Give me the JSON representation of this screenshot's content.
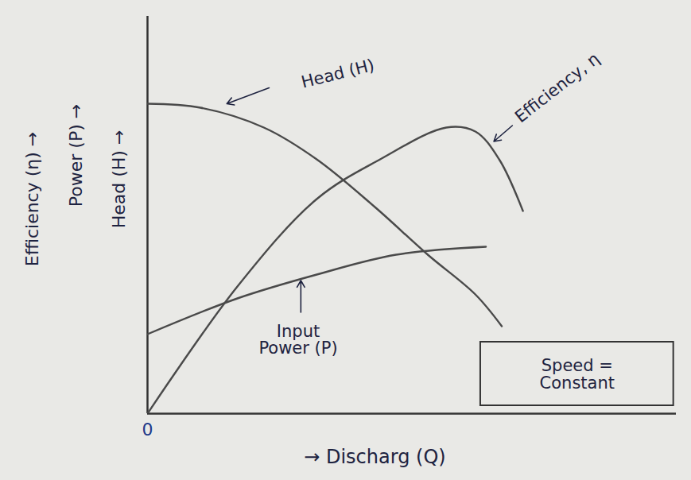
{
  "chart_data": {
    "type": "line",
    "x_label": "→ Discharg (Q)",
    "y_label": [
      "Efficiency (η) →",
      "Power (P) →",
      "Head (H) →"
    ],
    "xlim": [
      0,
      10
    ],
    "ylim": [
      0,
      10
    ],
    "xticks": [
      0
    ],
    "yticks": [],
    "tick_labels": "x",
    "series": [
      {
        "name": "Head (H)",
        "color": "#4a4a4a",
        "x": [
          0,
          1,
          2.2,
          3.2,
          4.3,
          5.3,
          6.2,
          6.7
        ],
        "values": [
          7.8,
          7.7,
          7.2,
          6.4,
          5.2,
          4.0,
          3.0,
          2.2
        ]
      },
      {
        "name": "Efficiency, η",
        "color": "#4a4a4a",
        "x": [
          0,
          1.7,
          3.2,
          4.4,
          5.65,
          6.2,
          6.65,
          7.1
        ],
        "values": [
          0,
          3.2,
          5.4,
          6.4,
          7.2,
          7.1,
          6.4,
          5.1
        ]
      },
      {
        "name": "Input Power (P)",
        "color": "#4a4a4a",
        "x": [
          0,
          1.7,
          3.2,
          4.7,
          6.4
        ],
        "values": [
          2.0,
          2.9,
          3.5,
          4.0,
          4.2
        ]
      }
    ],
    "annotations": [
      "Speed = Constant"
    ]
  }
}
